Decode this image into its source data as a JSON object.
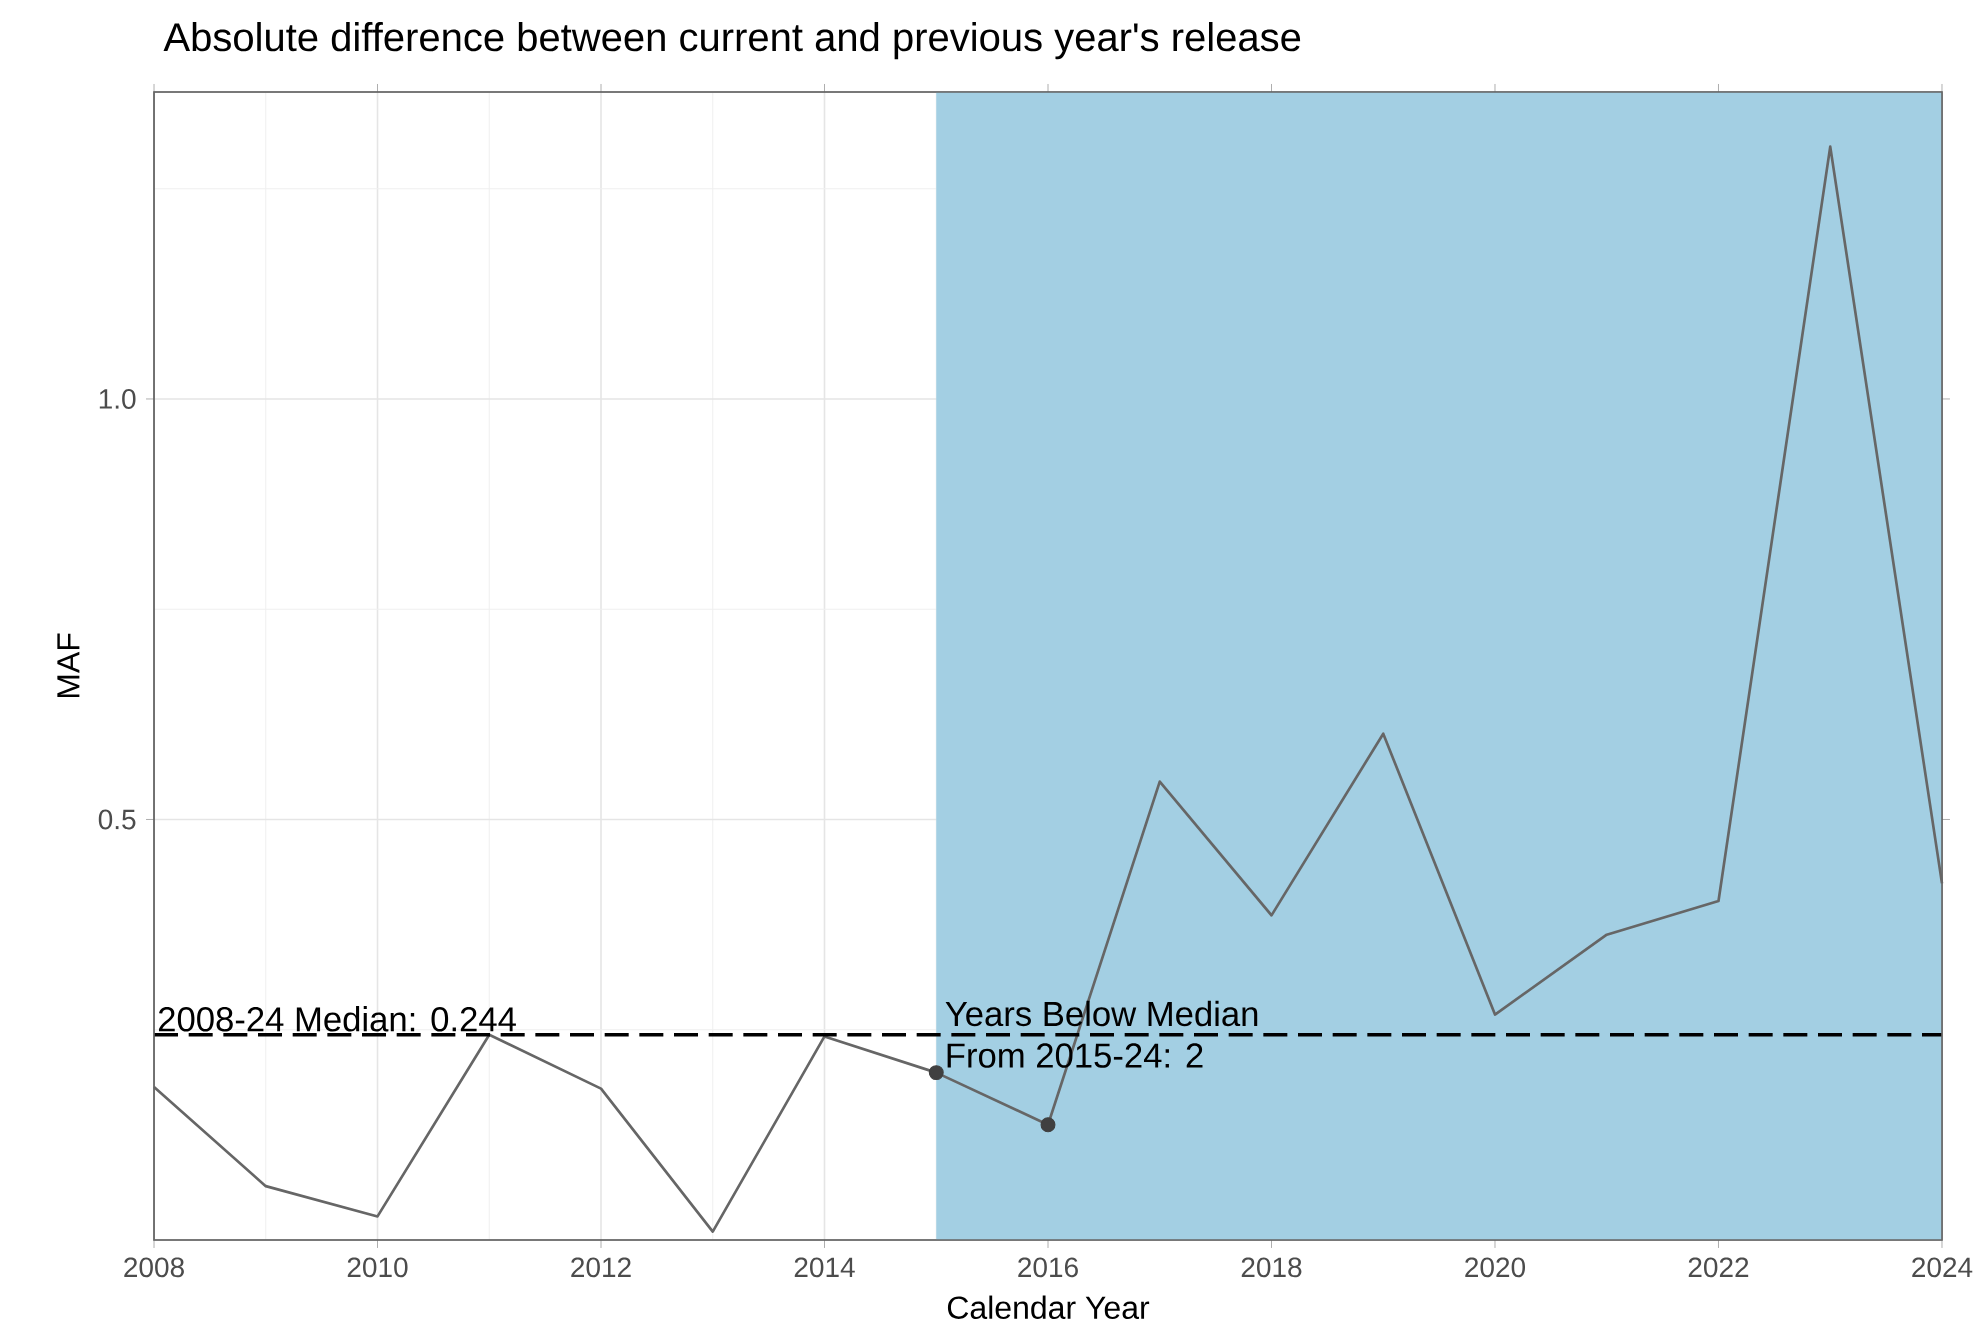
{
  "chart_data": {
    "type": "line",
    "title": "Absolute difference between current and previous year's release",
    "xlabel": "Calendar Year",
    "ylabel": "MAF",
    "x": [
      2008,
      2009,
      2010,
      2011,
      2012,
      2013,
      2014,
      2015,
      2016,
      2017,
      2018,
      2019,
      2020,
      2021,
      2022,
      2023,
      2024
    ],
    "series": [
      {
        "color": "#666666",
        "values": [
          0.182,
          0.064,
          0.028,
          0.244,
          0.18,
          0.01,
          0.242,
          0.199,
          0.137,
          0.545,
          0.386,
          0.602,
          0.268,
          0.363,
          0.403,
          1.3,
          0.424
        ]
      },
      {
        "type": "scatter",
        "color": "#404040",
        "x": [
          2015,
          2016
        ],
        "values": [
          0.199,
          0.137
        ]
      }
    ],
    "xlim": [
      2008,
      2024
    ],
    "ylim": [
      0,
      1.365
    ],
    "xticks": [
      2008,
      2010,
      2012,
      2014,
      2016,
      2018,
      2020,
      2022,
      2024
    ],
    "yticks": [
      {
        "value": 0.5,
        "label": "0.5"
      },
      {
        "value": 1.0,
        "label": "1.0"
      }
    ],
    "grid": true,
    "ref_lines": [
      {
        "axis": "y",
        "value": 0.244,
        "label": "2008-24 Median: 0.244",
        "color": "#000000",
        "line_style": "dashed"
      }
    ],
    "bands": [
      {
        "axis": "x",
        "from": 2015,
        "to": 2024,
        "color": "#a3cfe3"
      }
    ],
    "annotations": [
      {
        "text": "Years Below Median",
        "x": 2015,
        "y": 0.244
      },
      {
        "text": "From 2015-24: 2",
        "x": 2015,
        "y": 0.244
      }
    ]
  }
}
